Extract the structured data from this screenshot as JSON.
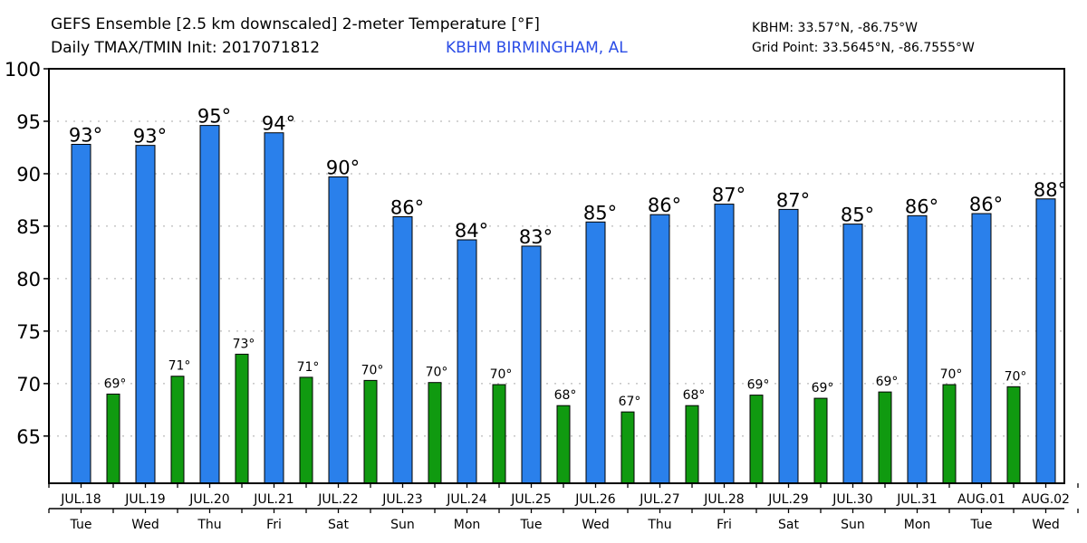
{
  "header": {
    "title_line1": "GEFS Ensemble [2.5 km downscaled] 2-meter Temperature [°F]",
    "title_line2": "Daily TMAX/TMIN Init: 2017071812",
    "station_label": "KBHM BIRMINGHAM, AL",
    "station_coords": "KBHM: 33.57°N, -86.75°W",
    "grid_point_coords": "Grid Point: 33.5645°N, -86.7555°W"
  },
  "colors": {
    "tmax": "#2a80eb",
    "tmin": "#109a10",
    "station_text": "#2b4de6",
    "grid": "#aaaaaa"
  },
  "chart_data": {
    "type": "bar",
    "title": "GEFS Ensemble [2.5 km downscaled] 2-meter Temperature [°F] — Daily TMAX/TMIN",
    "xlabel": "",
    "ylabel": "",
    "ylim": [
      60.5,
      100
    ],
    "yticks": [
      65,
      70,
      75,
      80,
      85,
      90,
      95,
      100
    ],
    "grid": true,
    "categories": [
      "JUL.18",
      "JUL.19",
      "JUL.20",
      "JUL.21",
      "JUL.22",
      "JUL.23",
      "JUL.24",
      "JUL.25",
      "JUL.26",
      "JUL.27",
      "JUL.28",
      "JUL.29",
      "JUL.30",
      "JUL.31",
      "AUG.01",
      "AUG.02"
    ],
    "days_of_week": [
      "Tue",
      "Wed",
      "Thu",
      "Fri",
      "Sat",
      "Sun",
      "Mon",
      "Tue",
      "Wed",
      "Thu",
      "Fri",
      "Sat",
      "Sun",
      "Mon",
      "Tue",
      "Wed"
    ],
    "series": [
      {
        "name": "TMAX",
        "values": [
          92.8,
          92.7,
          94.6,
          93.9,
          89.7,
          85.9,
          83.7,
          83.1,
          85.4,
          86.1,
          87.1,
          86.6,
          85.2,
          86.0,
          86.2,
          87.6
        ],
        "labels": [
          "93°",
          "93°",
          "95°",
          "94°",
          "90°",
          "86°",
          "84°",
          "83°",
          "85°",
          "86°",
          "87°",
          "87°",
          "85°",
          "86°",
          "86°",
          "88°"
        ]
      },
      {
        "name": "TMIN",
        "values": [
          69.0,
          70.7,
          72.8,
          70.6,
          70.3,
          70.1,
          69.9,
          67.9,
          67.3,
          67.9,
          68.9,
          68.6,
          69.2,
          69.9,
          69.7
        ],
        "labels": [
          "69°",
          "71°",
          "73°",
          "71°",
          "70°",
          "70°",
          "70°",
          "68°",
          "67°",
          "68°",
          "69°",
          "69°",
          "69°",
          "70°",
          "70°"
        ]
      }
    ]
  }
}
